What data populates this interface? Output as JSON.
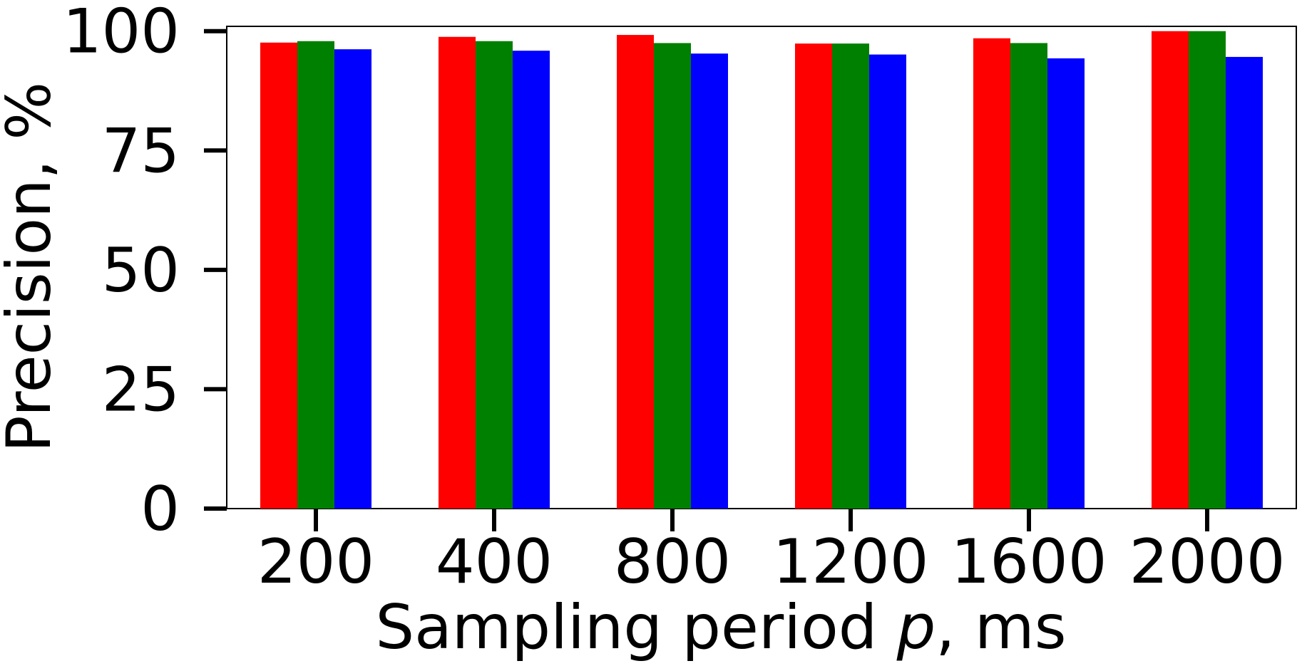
{
  "chart_data": {
    "type": "bar",
    "title": "",
    "xlabel_parts": {
      "before": "Sampling period ",
      "var": "p",
      "after": ", ms"
    },
    "ylabel": "Precision, %",
    "categories": [
      "200",
      "400",
      "800",
      "1200",
      "1600",
      "2000"
    ],
    "ylim": [
      0,
      101
    ],
    "yticks": [
      0,
      25,
      50,
      75,
      100
    ],
    "grid": false,
    "legend": "none",
    "series": [
      {
        "color": "#ff0000",
        "values": [
          97.6,
          98.8,
          99.2,
          97.4,
          98.5,
          100.0
        ]
      },
      {
        "color": "#008000",
        "values": [
          97.9,
          97.9,
          97.5,
          97.4,
          97.5,
          100.0
        ]
      },
      {
        "color": "#0000ff",
        "values": [
          96.2,
          95.9,
          95.3,
          95.1,
          94.3,
          94.6
        ]
      }
    ]
  }
}
